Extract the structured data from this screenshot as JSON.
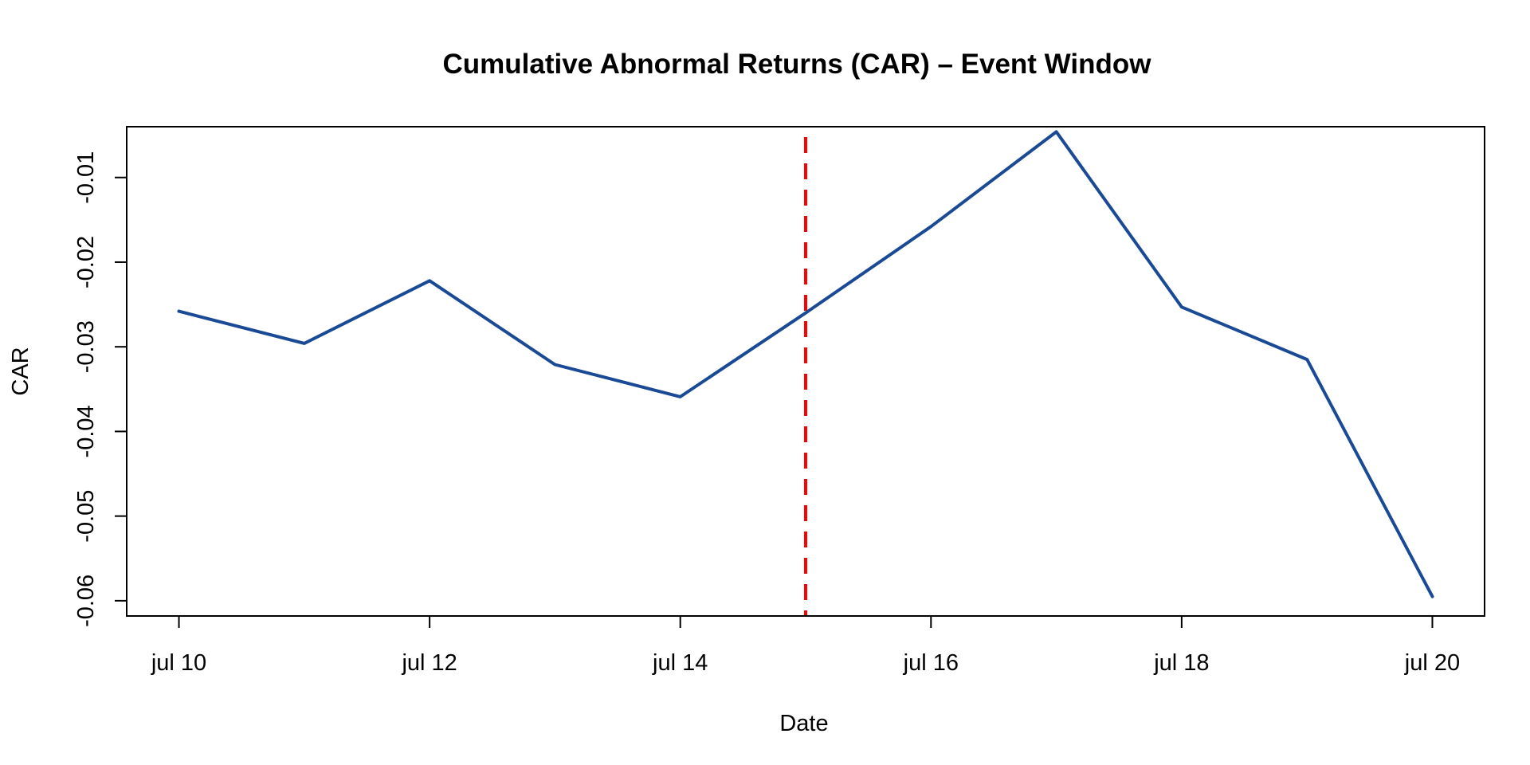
{
  "chart_data": {
    "type": "line",
    "title": "Cumulative Abnormal Returns (CAR) – Event Window",
    "xlabel": "Date",
    "ylabel": "CAR",
    "x": [
      "2023-07-10",
      "2023-07-11",
      "2023-07-12",
      "2023-07-13",
      "2023-07-14",
      "2023-07-15",
      "2023-07-16",
      "2023-07-17",
      "2023-07-18",
      "2023-07-19",
      "2023-07-20"
    ],
    "x_tick_values": [
      "2023-07-10",
      "2023-07-12",
      "2023-07-14",
      "2023-07-16",
      "2023-07-18",
      "2023-07-20"
    ],
    "x_tick_labels": [
      "jul 10",
      "jul 12",
      "jul 14",
      "jul 16",
      "jul 18",
      "jul 20"
    ],
    "xlim": [
      "2023-07-09T14:00",
      "2023-07-20T10:00"
    ],
    "series": [
      {
        "values": [
          -0.0258,
          -0.0296,
          -0.0222,
          -0.0321,
          -0.0359,
          -0.026,
          -0.0158,
          -0.0046,
          -0.0253,
          -0.0315,
          -0.0595
        ],
        "color": "#1a4a96"
      }
    ],
    "ylim": [
      -0.0618,
      -0.004
    ],
    "y_ticks": [
      -0.06,
      -0.05,
      -0.04,
      -0.03,
      -0.02,
      -0.01
    ],
    "y_tick_labels": [
      "-0.06",
      "-0.05",
      "-0.04",
      "-0.03",
      "-0.02",
      "-0.01"
    ],
    "event_line": {
      "x": "2023-07-15",
      "color": "#ff0000",
      "style": "dashed"
    },
    "grid": false,
    "legend": "none"
  }
}
